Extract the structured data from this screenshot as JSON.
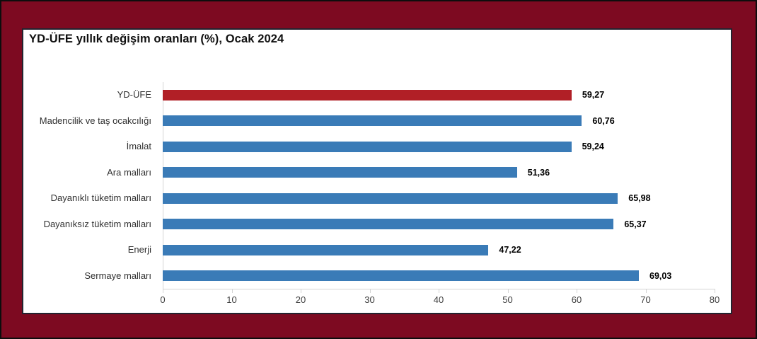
{
  "frame": {
    "frame_color": "#7D0A21",
    "outer_border_color": "#0D0D0D",
    "panel_bg": "#FFFFFF",
    "panel_border_color": "#23232F"
  },
  "chart_data": {
    "type": "bar",
    "orientation": "horizontal",
    "title": "YD-ÜFE yıllık değişim oranları (%), Ocak 2024",
    "categories": [
      "YD-ÜFE",
      "Madencilik ve taş ocakcılığı",
      "İmalat",
      "Ara malları",
      "Dayanıklı tüketim malları",
      "Dayanıksız tüketim malları",
      "Enerji",
      "Sermaye malları"
    ],
    "values": [
      59.27,
      60.76,
      59.24,
      51.36,
      65.98,
      65.37,
      47.22,
      69.03
    ],
    "value_labels": [
      "59,27",
      "60,76",
      "59,24",
      "51,36",
      "65,98",
      "65,37",
      "47,22",
      "69,03"
    ],
    "highlight_index": 0,
    "xlabel": "",
    "ylabel": "",
    "xlim": [
      0,
      80
    ],
    "x_ticks": [
      0,
      10,
      20,
      30,
      40,
      50,
      60,
      70,
      80
    ],
    "x_tick_labels": [
      "0",
      "10",
      "20",
      "30",
      "40",
      "50",
      "60",
      "70",
      "80"
    ],
    "grid": false,
    "legend": "none",
    "colors": {
      "highlight_bar": "#B11F26",
      "default_bar": "#3A7BB7",
      "axis_line": "#D4D4D4",
      "tick_label": "#3D3D3D",
      "category_label": "#303030",
      "value_label": "#000000",
      "title": "#101010"
    }
  }
}
